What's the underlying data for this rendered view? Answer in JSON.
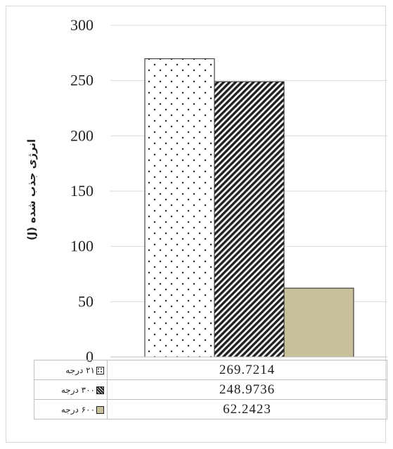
{
  "chart_data": {
    "type": "bar",
    "categories": [
      ""
    ],
    "series": [
      {
        "name": "۲۱ درجه",
        "values": [
          269.7214
        ],
        "value_label": "269.7214",
        "fill": "dots",
        "color": "#ffffff"
      },
      {
        "name": "۳۰۰ درجه",
        "values": [
          248.9736
        ],
        "value_label": "248.9736",
        "fill": "diagonal-hatch",
        "color": "#222222"
      },
      {
        "name": "۶۰۰ درجه",
        "values": [
          62.2423
        ],
        "value_label": "62.2423",
        "fill": "solid",
        "color": "#c8bf9b"
      }
    ],
    "ylabel": "انرژی جذب شده (J)",
    "ylim": [
      0,
      300
    ],
    "yticks": [
      0,
      50,
      100,
      150,
      200,
      250,
      300
    ],
    "grid": true,
    "legend": "data-table-bottom",
    "title": "",
    "xlabel": ""
  }
}
